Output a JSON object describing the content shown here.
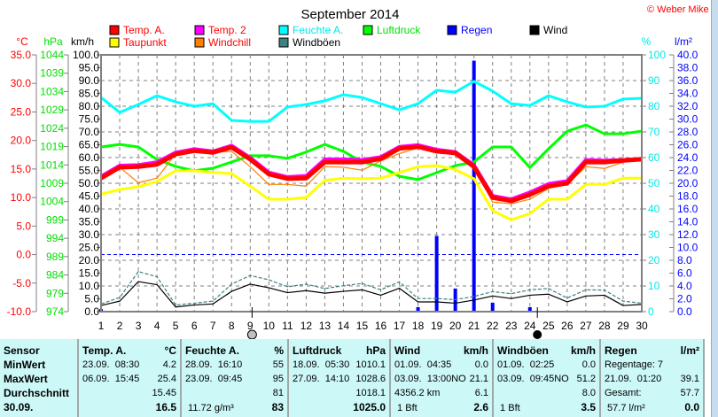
{
  "title": "September 2014",
  "copyright": "© Weber Mike",
  "axes": {
    "temp": {
      "label": "°C",
      "color": "#ff0000",
      "range": [
        -10,
        35
      ],
      "ticks": [
        "35.0",
        "30.0",
        "25.0",
        "20.0",
        "15.0",
        "10.0",
        "5.0",
        "0.0",
        "-5.0",
        "-10.0"
      ]
    },
    "pressure": {
      "label": "hPa",
      "color": "#00e000",
      "range": [
        974,
        1044
      ],
      "ticks": [
        "1044",
        "1039",
        "1034",
        "1029",
        "1024",
        "1019",
        "1014",
        "1009",
        "1004",
        "999",
        "994",
        "989",
        "984",
        "979",
        "974"
      ]
    },
    "wind": {
      "label": "km/h",
      "color": "#000000",
      "range": [
        0,
        100
      ],
      "ticks": [
        "100.0",
        "95.0",
        "90.0",
        "85.0",
        "80.0",
        "75.0",
        "70.0",
        "65.0",
        "60.0",
        "55.0",
        "50.0",
        "45.0",
        "40.0",
        "35.0",
        "30.0",
        "25.0",
        "20.0",
        "15.0",
        "10.0",
        "5.0",
        "0.0"
      ]
    },
    "humidity": {
      "label": "%",
      "color": "#00e8e8",
      "range": [
        0,
        100
      ],
      "ticks": [
        "100",
        "90",
        "80",
        "70",
        "60",
        "50",
        "40",
        "30",
        "20",
        "10",
        "0"
      ]
    },
    "rain": {
      "label": "l/m²",
      "color": "#0000ff",
      "range": [
        0,
        40
      ],
      "ticks": [
        "40.0",
        "38.0",
        "36.0",
        "34.0",
        "32.0",
        "30.0",
        "28.0",
        "26.0",
        "24.0",
        "22.0",
        "20.0",
        "18.0",
        "16.0",
        "14.0",
        "12.0",
        "10.0",
        "8.0",
        "6.0",
        "4.0",
        "2.0",
        "0.0"
      ]
    },
    "x_ticks": [
      "1",
      "2",
      "3",
      "4",
      "5",
      "6",
      "7",
      "8",
      "9",
      "10",
      "11",
      "12",
      "13",
      "14",
      "15",
      "16",
      "17",
      "18",
      "19",
      "20",
      "21",
      "22",
      "23",
      "24",
      "25",
      "26",
      "27",
      "28",
      "29",
      "30"
    ]
  },
  "legend": [
    {
      "label": "Temp. A.",
      "color": "#ff0000",
      "text_color": "#ff0000"
    },
    {
      "label": "Temp. 2",
      "color": "#ff00ff",
      "text_color": "#ff0000"
    },
    {
      "label": "Feuchte A.",
      "color": "#00ffff",
      "text_color": "#00e8e8"
    },
    {
      "label": "Luftdruck",
      "color": "#00ff00",
      "text_color": "#00e000"
    },
    {
      "label": "Regen",
      "color": "#0000ff",
      "text_color": "#0000ff"
    },
    {
      "label": "Wind",
      "color": "#000000",
      "text_color": "#000000"
    },
    {
      "label": "Taupunkt",
      "color": "#ffff00",
      "text_color": "#ff0000"
    },
    {
      "label": "Windchill",
      "color": "#ff8000",
      "text_color": "#ff0000"
    },
    {
      "label": "Windböen",
      "color": "#408080",
      "text_color": "#000000"
    }
  ],
  "moon_phases": [
    {
      "phase": "full-moon",
      "day": 9.1
    },
    {
      "phase": "new-moon",
      "day": 24.4
    }
  ],
  "chart_data": {
    "type": "line",
    "x": [
      1,
      2,
      3,
      4,
      5,
      6,
      7,
      8,
      9,
      10,
      11,
      12,
      13,
      14,
      15,
      16,
      17,
      18,
      19,
      20,
      21,
      22,
      23,
      24,
      25,
      26,
      27,
      28,
      29,
      30
    ],
    "grid": true,
    "frost_line": {
      "axis": "temp",
      "value": 0,
      "color": "#0000ff"
    },
    "series": [
      {
        "name": "Temp. A.",
        "axis": "temp",
        "color": "#ff0000",
        "values": [
          13.4,
          15.3,
          15.4,
          15.8,
          17.6,
          18.2,
          17.9,
          18.8,
          16.7,
          14.1,
          13.3,
          13.4,
          16.2,
          16.2,
          16.2,
          16.8,
          18.6,
          18.9,
          18.1,
          17.8,
          15.4,
          10.0,
          9.4,
          10.5,
          12.0,
          12.5,
          16.2,
          16.2,
          16.5,
          16.7
        ]
      },
      {
        "name": "Temp. 2",
        "axis": "temp",
        "color": "#ff00ff",
        "values": [
          13.7,
          15.6,
          15.7,
          16.2,
          17.9,
          18.5,
          18.1,
          19.1,
          17.0,
          14.4,
          13.6,
          13.8,
          16.7,
          16.7,
          16.6,
          17.1,
          18.9,
          19.2,
          18.4,
          18.0,
          15.7,
          10.3,
          9.7,
          10.9,
          12.4,
          12.9,
          16.6,
          16.5,
          16.6,
          16.8
        ]
      },
      {
        "name": "Taupunkt",
        "axis": "temp",
        "color": "#ffff00",
        "values": [
          10.6,
          11.4,
          11.9,
          12.8,
          14.7,
          14.7,
          14.4,
          14.2,
          12.0,
          9.7,
          9.7,
          10.0,
          13.0,
          13.4,
          13.3,
          13.4,
          14.4,
          15.4,
          15.6,
          14.9,
          13.3,
          7.7,
          6.1,
          7.2,
          9.7,
          9.7,
          12.3,
          12.3,
          13.4,
          13.4
        ]
      },
      {
        "name": "Windchill",
        "axis": "temp",
        "color": "#ff8000",
        "values": [
          13.4,
          15.3,
          12.6,
          13.4,
          17.7,
          18.2,
          17.9,
          18.1,
          15.4,
          12.3,
          12.3,
          12.0,
          15.4,
          15.3,
          14.8,
          16.4,
          17.7,
          18.7,
          18.2,
          17.8,
          15.4,
          9.2,
          8.9,
          9.7,
          11.6,
          12.3,
          15.4,
          15.1,
          16.2,
          16.5
        ]
      },
      {
        "name": "Feuchte A.",
        "axis": "humidity",
        "color": "#00ffff",
        "values": [
          83.4,
          77.6,
          80.7,
          84.1,
          81.7,
          80.0,
          81.0,
          74.5,
          74.1,
          74.1,
          79.7,
          80.7,
          82.1,
          84.5,
          83.4,
          81.0,
          78.6,
          81.0,
          86.2,
          85.5,
          89.7,
          85.9,
          81.0,
          80.3,
          84.1,
          81.7,
          79.7,
          80.0,
          82.8,
          83.1
        ]
      },
      {
        "name": "Luftdruck",
        "axis": "pressure",
        "color": "#00ff00",
        "values": [
          1018.9,
          1019.6,
          1018.9,
          1015.5,
          1013.6,
          1012.4,
          1013.1,
          1014.8,
          1016.5,
          1016.5,
          1015.8,
          1017.5,
          1019.6,
          1017.7,
          1014.8,
          1013.6,
          1010.9,
          1010.0,
          1011.9,
          1013.8,
          1014.8,
          1018.9,
          1018.9,
          1013.3,
          1018.4,
          1023.2,
          1024.9,
          1022.5,
          1022.5,
          1023.2
        ]
      },
      {
        "name": "Wind",
        "axis": "wind",
        "color": "#000000",
        "values": [
          2.4,
          4.1,
          11.7,
          10.5,
          1.8,
          2.6,
          3.0,
          7.9,
          10.7,
          9.3,
          7.4,
          8.2,
          7.2,
          7.9,
          8.5,
          6.4,
          9.1,
          3.8,
          3.8,
          3.3,
          4.5,
          6.1,
          5.1,
          6.4,
          6.8,
          3.8,
          6.1,
          6.4,
          2.4,
          2.8
        ]
      },
      {
        "name": "Windböen",
        "axis": "wind",
        "color": "#408080",
        "values": [
          3.0,
          5.5,
          15.6,
          13.6,
          2.6,
          3.3,
          4.1,
          10.7,
          14.1,
          12.4,
          9.7,
          10.7,
          9.0,
          10.1,
          11.0,
          8.5,
          11.6,
          5.1,
          5.1,
          4.7,
          5.9,
          7.8,
          7.0,
          8.5,
          9.0,
          5.3,
          8.5,
          8.4,
          4.1,
          3.3
        ]
      },
      {
        "name": "Regen",
        "axis": "rain",
        "type": "bar",
        "color": "#0000ff",
        "values": [
          0.4,
          0,
          0,
          0,
          0,
          0,
          0,
          0,
          0,
          0,
          0,
          0,
          0,
          0,
          0,
          0,
          0,
          0.7,
          11.8,
          3.6,
          39.1,
          1.4,
          0,
          0.7,
          0,
          0,
          0,
          0,
          0,
          0
        ]
      }
    ]
  },
  "table": {
    "sensor": [
      "Sensor",
      "MinWert",
      "MaxWert",
      "Durchschnitt",
      "30.09."
    ],
    "sections": [
      {
        "header": "Temp. A.",
        "unit": "°C",
        "rows": [
          [
            "23.09.  08:30",
            "4.2"
          ],
          [
            "06.09.  15:45",
            "25.4"
          ],
          [
            "",
            "15.45"
          ],
          [
            "",
            "16.5"
          ]
        ]
      },
      {
        "header": "Feuchte A.",
        "unit": "%",
        "rows": [
          [
            "28.09.  16:10",
            "55"
          ],
          [
            "23.09.  09:45",
            "95"
          ],
          [
            "",
            "81"
          ],
          [
            " 11.72 g/m³",
            "83"
          ]
        ]
      },
      {
        "header": "Luftdruck",
        "unit": "hPa",
        "rows": [
          [
            "18.09.  05:30",
            "1010.1"
          ],
          [
            "27.09.  14:10",
            "1028.6"
          ],
          [
            "",
            "1018.1"
          ],
          [
            "",
            "1025.0"
          ]
        ]
      },
      {
        "header": "Wind",
        "unit": "km/h",
        "rows": [
          [
            "01.09.  04:35",
            "0.0"
          ],
          [
            "03.09.  13:00NO",
            "21.1"
          ],
          [
            "4356.2 km",
            "6.1"
          ],
          [
            " 1 Bft",
            "2.6"
          ]
        ]
      },
      {
        "header": "Windböen",
        "unit": "km/h",
        "rows": [
          [
            "01.09.  02:25",
            "0.0"
          ],
          [
            "03.09.  09:45NO",
            "51.2"
          ],
          [
            "",
            "8.0"
          ],
          [
            " 1 Bft",
            "3.5"
          ]
        ]
      },
      {
        "header": "Regen",
        "unit": "l/m²",
        "rows": [
          [
            "Regentage: 7",
            ""
          ],
          [
            "21.09.  01:20",
            "39.1"
          ],
          [
            "Gesamt:",
            "57.7"
          ],
          [
            " 57.7 l/m²",
            "0.0"
          ]
        ]
      }
    ]
  }
}
